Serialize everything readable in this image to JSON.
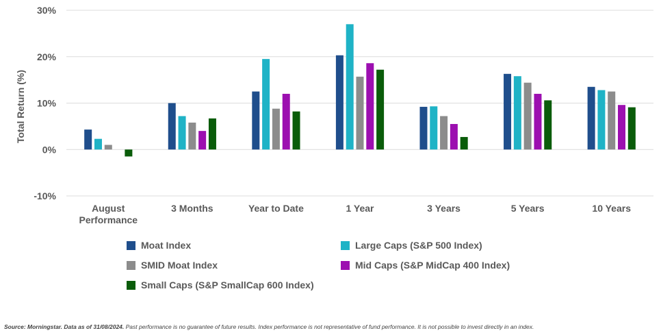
{
  "chart_data": {
    "type": "bar",
    "ylabel": "Total Return (%)",
    "ylim": [
      -10,
      30
    ],
    "yticks": [
      -10,
      0,
      10,
      20,
      30
    ],
    "ytick_labels": [
      "-10%",
      "0%",
      "10%",
      "20%",
      "30%"
    ],
    "categories": [
      [
        "August",
        "Performance"
      ],
      [
        "3 Months"
      ],
      [
        "Year to Date"
      ],
      [
        "1 Year"
      ],
      [
        "3 Years"
      ],
      [
        "5 Years"
      ],
      [
        "10 Years"
      ]
    ],
    "grid": true,
    "legend_position": "bottom",
    "series": [
      {
        "name": "Moat Index",
        "color": "#1f4e8c",
        "values": [
          4.3,
          10.0,
          12.5,
          20.3,
          9.2,
          16.3,
          13.5
        ]
      },
      {
        "name": "Large Caps (S&P 500 Index)",
        "color": "#1fb3c6",
        "values": [
          2.3,
          7.2,
          19.5,
          27.0,
          9.3,
          15.8,
          12.8
        ]
      },
      {
        "name": "SMID Moat Index",
        "color": "#8c8c8c",
        "values": [
          1.0,
          5.8,
          8.8,
          15.7,
          7.2,
          14.4,
          12.5
        ]
      },
      {
        "name": "Mid Caps (S&P MidCap 400 Index)",
        "color": "#9c0fb0",
        "values": [
          0.0,
          4.0,
          12.0,
          18.6,
          5.5,
          12.0,
          9.6
        ]
      },
      {
        "name": "Small Caps (S&P SmallCap 600 Index)",
        "color": "#0a5c0a",
        "values": [
          -1.5,
          6.7,
          8.2,
          17.2,
          2.7,
          10.6,
          9.1
        ]
      }
    ]
  },
  "footer": {
    "source_bold": "Source: Morningstar. Data as of 31/08/2024.",
    "source_text": " Past performance is no guarantee of future results. Index performance is not representative of fund performance. It is not possible to invest directly in an index."
  }
}
